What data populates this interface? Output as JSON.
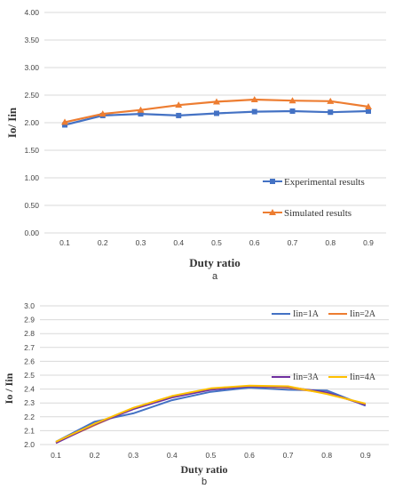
{
  "chart_data": [
    {
      "type": "line",
      "panel": "a",
      "xlabel": "Duty ratio",
      "ylabel": "Io/ Iin",
      "x": [
        "0.1",
        "0.2",
        "0.3",
        "0.4",
        "0.5",
        "0.6",
        "0.7",
        "0.8",
        "0.9"
      ],
      "ylim": [
        0,
        4
      ],
      "yticks": [
        "0.00",
        "0.50",
        "1.00",
        "1.50",
        "2.00",
        "2.50",
        "3.00",
        "3.50",
        "4.00"
      ],
      "grid": true,
      "legend": "bottom-right",
      "series": [
        {
          "name": "Experimental results",
          "color": "#4472c4",
          "marker": "square",
          "values": [
            1.96,
            2.13,
            2.16,
            2.13,
            2.17,
            2.2,
            2.21,
            2.19,
            2.21
          ]
        },
        {
          "name": "Simulated results",
          "color": "#ed7d31",
          "marker": "triangle",
          "values": [
            2.01,
            2.16,
            2.23,
            2.32,
            2.38,
            2.42,
            2.4,
            2.39,
            2.29
          ]
        }
      ]
    },
    {
      "type": "line",
      "panel": "b",
      "xlabel": "Duty ratio",
      "ylabel": "Io / Iin",
      "x": [
        "0.1",
        "0.2",
        "0.3",
        "0.4",
        "0.5",
        "0.6",
        "0.7",
        "0.8",
        "0.9"
      ],
      "ylim": [
        2.0,
        3.0
      ],
      "yticks": [
        "2.0",
        "2.1",
        "2.2",
        "2.3",
        "2.4",
        "2.5",
        "2.6",
        "2.7",
        "2.8",
        "2.9",
        "3.0"
      ],
      "grid": true,
      "legend": "top-right",
      "series": [
        {
          "name": "Iin=1A",
          "color": "#4472c4",
          "values": [
            2.02,
            2.165,
            2.225,
            2.32,
            2.38,
            2.41,
            2.395,
            2.39,
            2.28
          ]
        },
        {
          "name": "Iin=2A",
          "color": "#ed7d31",
          "values": [
            2.015,
            2.14,
            2.26,
            2.345,
            2.4,
            2.42,
            2.41,
            2.37,
            2.29
          ]
        },
        {
          "name": "Iin=3A",
          "color": "#7030a0",
          "values": [
            2.01,
            2.145,
            2.255,
            2.34,
            2.395,
            2.42,
            2.415,
            2.375,
            2.285
          ]
        },
        {
          "name": "Iin=4A",
          "color": "#ffc000",
          "values": [
            2.02,
            2.15,
            2.265,
            2.35,
            2.405,
            2.425,
            2.42,
            2.365,
            2.295
          ]
        }
      ]
    }
  ]
}
